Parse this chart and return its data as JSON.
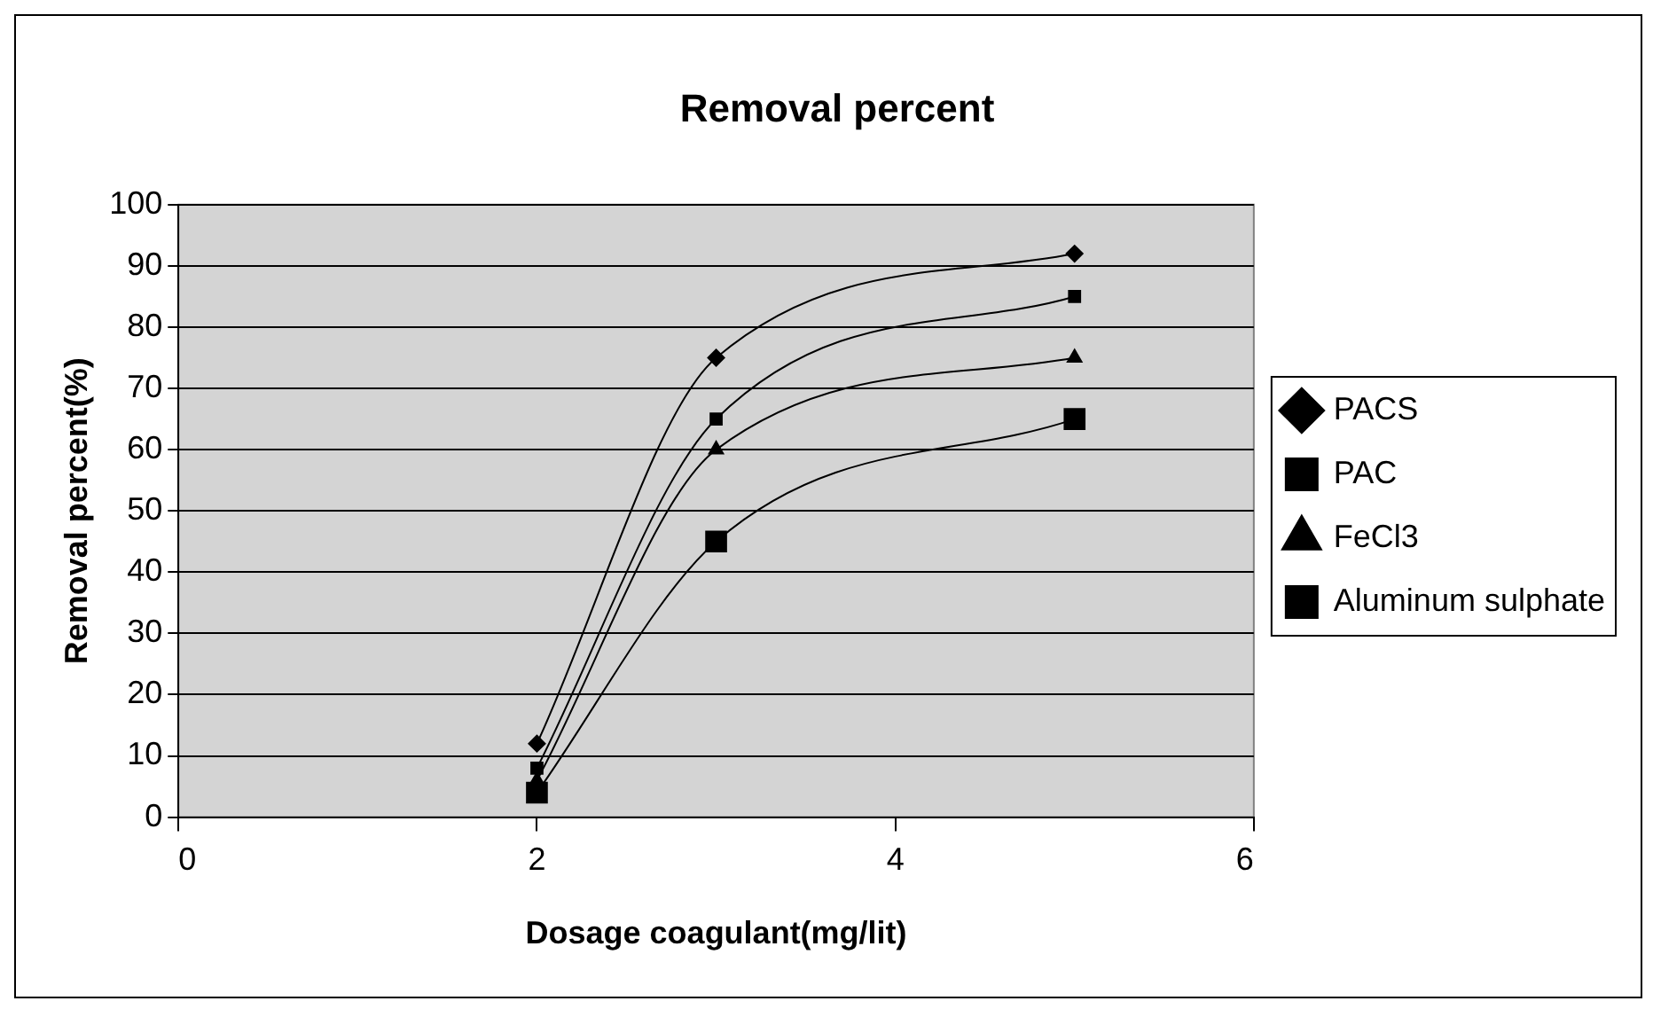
{
  "chart_data": {
    "type": "line",
    "title": "Removal percent",
    "xlabel": "Dosage coagulant(mg/lit)",
    "ylabel": "Removal percent(%)",
    "x": [
      2,
      3,
      5
    ],
    "series": [
      {
        "name": "PACS",
        "color": "#000000",
        "marker": "diamond",
        "values": [
          12,
          75,
          92
        ]
      },
      {
        "name": "PAC",
        "color": "#000000",
        "marker": "square",
        "values": [
          8,
          65,
          85
        ]
      },
      {
        "name": "FeCl3",
        "color": "#000000",
        "marker": "triangle",
        "values": [
          6,
          60,
          75
        ]
      },
      {
        "name": "Aluminum sulphate",
        "color": "#000000",
        "marker": "square",
        "values": [
          4,
          45,
          65
        ]
      }
    ],
    "xlim": [
      0,
      6
    ],
    "xticks": [
      0,
      2,
      4,
      6
    ],
    "ylim": [
      0,
      100
    ],
    "yticks": [
      0,
      10,
      20,
      30,
      40,
      50,
      60,
      70,
      80,
      90,
      100
    ],
    "grid": "y",
    "legend": "right",
    "line_style": "solid"
  }
}
